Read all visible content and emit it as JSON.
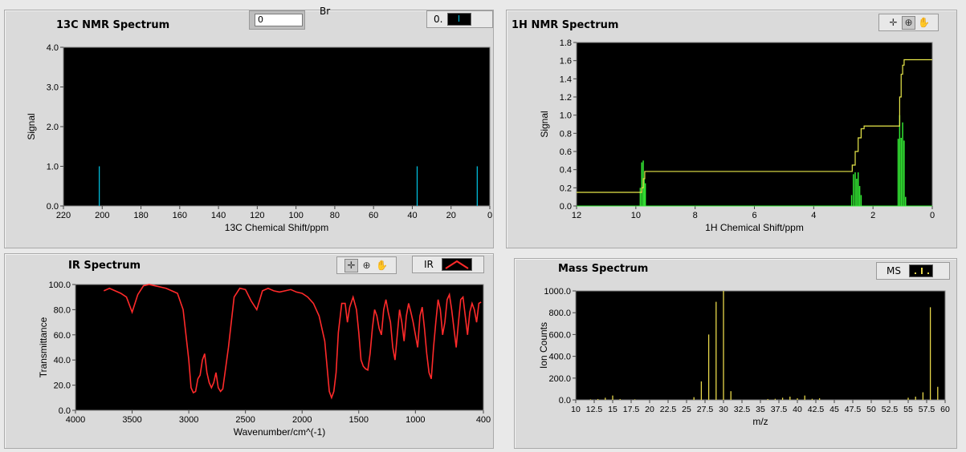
{
  "c13": {
    "title": "13C NMR Spectrum",
    "xlabel": "13C Chemical Shift/ppm",
    "ylabel": "Signal",
    "numeric_value": "0",
    "br_label": "Br",
    "legend_label": "0.",
    "xticks": [
      "220",
      "200",
      "180",
      "160",
      "140",
      "120",
      "100",
      "80",
      "60",
      "40",
      "20",
      "0"
    ],
    "yticks": [
      "0.0",
      "1.0",
      "2.0",
      "3.0",
      "4.0"
    ]
  },
  "h1": {
    "title": "1H NMR Spectrum",
    "xlabel": "1H Chemical Shift/ppm",
    "ylabel": "Signal",
    "xticks": [
      "12",
      "10",
      "8",
      "6",
      "4",
      "2",
      "0"
    ],
    "yticks": [
      "0.0",
      "0.2",
      "0.4",
      "0.6",
      "0.8",
      "1.0",
      "1.2",
      "1.4",
      "1.6",
      "1.8"
    ]
  },
  "ir": {
    "title": "IR Spectrum",
    "xlabel": "Wavenumber/cm^(-1)",
    "ylabel": "Transmittance",
    "legend_label": "IR",
    "xticks": [
      "4000",
      "3500",
      "3000",
      "2500",
      "2000",
      "1500",
      "1000",
      "400"
    ],
    "yticks": [
      "0.0",
      "20.0",
      "40.0",
      "60.0",
      "80.0",
      "100.0"
    ]
  },
  "ms": {
    "title": "Mass Spectrum",
    "xlabel": "m/z",
    "ylabel": "Ion Counts",
    "legend_label": "MS",
    "xticks": [
      "10",
      "12.5",
      "15",
      "17.5",
      "20",
      "22.5",
      "25",
      "27.5",
      "30",
      "32.5",
      "35",
      "37.5",
      "40",
      "42.5",
      "45",
      "47.5",
      "50",
      "52.5",
      "55",
      "57.5",
      "60"
    ],
    "yticks": [
      "0.0",
      "200.0",
      "400.0",
      "600.0",
      "800.0",
      "1000.0"
    ]
  },
  "colors": {
    "c13": "#00c8e8",
    "h1_peaks": "#33e633",
    "h1_integral": "#e8e84a",
    "ir": "#ff2a2a",
    "ms": "#e8d84a"
  },
  "chart_data": [
    {
      "type": "bar",
      "title": "13C NMR Spectrum",
      "xlabel": "13C Chemical Shift/ppm",
      "ylabel": "Signal",
      "xlim": [
        220,
        0
      ],
      "ylim": [
        0,
        4
      ],
      "x": [
        201.5,
        37.5,
        6.5
      ],
      "y": [
        1.0,
        1.0,
        1.0
      ]
    },
    {
      "type": "line",
      "title": "1H NMR Spectrum",
      "xlabel": "1H Chemical Shift/ppm",
      "ylabel": "Signal",
      "xlim": [
        12,
        0
      ],
      "ylim": [
        0,
        1.8
      ],
      "peaks": {
        "x": [
          9.85,
          9.8,
          9.75,
          9.72,
          9.68,
          2.72,
          2.66,
          2.6,
          2.55,
          2.5,
          2.45,
          2.4,
          1.15,
          1.1,
          1.05,
          1.0,
          0.95,
          0.9
        ],
        "y": [
          0.2,
          0.48,
          0.5,
          0.3,
          0.25,
          0.12,
          0.35,
          0.37,
          0.3,
          0.37,
          0.22,
          0.12,
          0.74,
          1.0,
          0.75,
          0.92,
          0.72,
          0.1
        ]
      },
      "integral": {
        "x": [
          12,
          9.85,
          9.8,
          9.75,
          9.7,
          2.75,
          2.7,
          2.6,
          2.5,
          2.4,
          2.3,
          1.15,
          1.1,
          1.05,
          1.0,
          0.95,
          0
        ],
        "y": [
          0.15,
          0.15,
          0.2,
          0.3,
          0.38,
          0.38,
          0.45,
          0.6,
          0.75,
          0.85,
          0.88,
          0.88,
          1.2,
          1.45,
          1.55,
          1.61,
          1.61
        ]
      }
    },
    {
      "type": "line",
      "title": "IR Spectrum",
      "xlabel": "Wavenumber/cm^(-1)",
      "ylabel": "Transmittance",
      "xlim": [
        4000,
        400
      ],
      "ylim": [
        0,
        100
      ],
      "x": [
        3750,
        3700,
        3650,
        3600,
        3550,
        3500,
        3450,
        3400,
        3350,
        3300,
        3250,
        3200,
        3150,
        3100,
        3050,
        3000,
        2980,
        2960,
        2940,
        2920,
        2900,
        2880,
        2860,
        2840,
        2820,
        2800,
        2780,
        2760,
        2740,
        2720,
        2700,
        2650,
        2600,
        2550,
        2500,
        2450,
        2400,
        2350,
        2300,
        2250,
        2200,
        2150,
        2100,
        2050,
        2000,
        1950,
        1900,
        1850,
        1800,
        1780,
        1760,
        1740,
        1720,
        1700,
        1680,
        1650,
        1620,
        1600,
        1580,
        1550,
        1520,
        1500,
        1480,
        1460,
        1440,
        1420,
        1400,
        1380,
        1360,
        1340,
        1320,
        1300,
        1280,
        1260,
        1240,
        1220,
        1200,
        1180,
        1160,
        1140,
        1120,
        1100,
        1080,
        1060,
        1040,
        1020,
        1000,
        980,
        960,
        940,
        920,
        900,
        880,
        860,
        840,
        820,
        800,
        780,
        760,
        740,
        720,
        700,
        680,
        660,
        640,
        620,
        600,
        580,
        560,
        540,
        520,
        500,
        480,
        460,
        440,
        420
      ],
      "y": [
        95,
        97,
        95,
        93,
        90,
        78,
        92,
        99,
        100,
        99,
        98,
        97,
        95,
        93,
        80,
        40,
        18,
        14,
        15,
        25,
        28,
        40,
        45,
        30,
        22,
        18,
        22,
        30,
        18,
        15,
        17,
        50,
        90,
        97,
        96,
        87,
        80,
        95,
        97,
        95,
        94,
        95,
        96,
        94,
        93,
        90,
        85,
        75,
        55,
        35,
        15,
        10,
        15,
        30,
        62,
        85,
        85,
        70,
        82,
        90,
        80,
        62,
        40,
        35,
        33,
        32,
        45,
        65,
        80,
        75,
        65,
        60,
        80,
        88,
        78,
        70,
        50,
        40,
        60,
        80,
        70,
        55,
        75,
        85,
        78,
        70,
        60,
        50,
        75,
        82,
        65,
        45,
        30,
        25,
        50,
        70,
        88,
        80,
        60,
        70,
        88,
        92,
        80,
        65,
        50,
        70,
        88,
        90,
        75,
        60,
        78,
        85,
        80,
        70,
        85,
        86
      ],
      "note_y_is": "Transmittance"
    },
    {
      "type": "bar",
      "title": "Mass Spectrum",
      "xlabel": "m/z",
      "ylabel": "Ion Counts",
      "xlim": [
        10,
        60
      ],
      "ylim": [
        0,
        1000
      ],
      "x": [
        12,
        13,
        14,
        15,
        16,
        18,
        26,
        27,
        28,
        29,
        30,
        31,
        36,
        37,
        38,
        39,
        40,
        41,
        42,
        43,
        55,
        56,
        57,
        58,
        59
      ],
      "y": [
        5,
        8,
        20,
        40,
        8,
        5,
        25,
        170,
        600,
        900,
        1000,
        80,
        8,
        10,
        20,
        30,
        15,
        40,
        10,
        15,
        20,
        30,
        70,
        850,
        120
      ]
    }
  ]
}
